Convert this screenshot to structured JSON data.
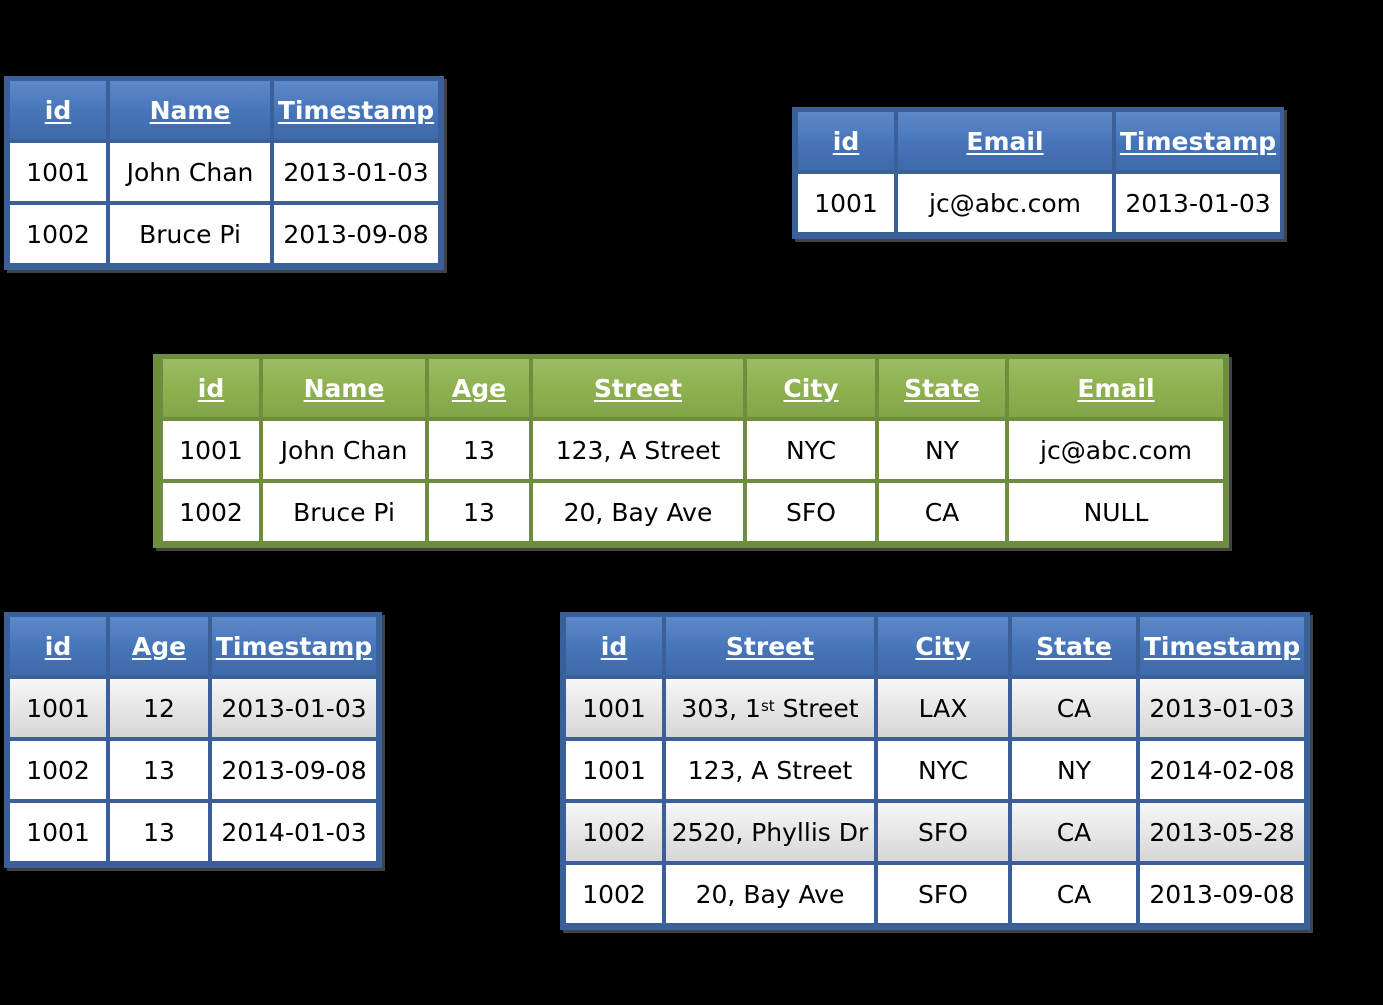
{
  "tables": {
    "person_name": {
      "headers": [
        "id",
        "Name",
        "Timestamp"
      ],
      "rows": [
        [
          "1001",
          "John Chan",
          "2013-01-03"
        ],
        [
          "1002",
          "Bruce Pi",
          "2013-09-08"
        ]
      ]
    },
    "person_email": {
      "headers": [
        "id",
        "Email",
        "Timestamp"
      ],
      "rows": [
        [
          "1001",
          "jc@abc.com",
          "2013-01-03"
        ]
      ]
    },
    "person_current": {
      "headers": [
        "id",
        "Name",
        "Age",
        "Street",
        "City",
        "State",
        "Email"
      ],
      "rows": [
        [
          "1001",
          "John Chan",
          "13",
          "123, A Street",
          "NYC",
          "NY",
          "jc@abc.com"
        ],
        [
          "1002",
          "Bruce Pi",
          "13",
          "20, Bay Ave",
          "SFO",
          "CA",
          "NULL"
        ]
      ]
    },
    "person_age": {
      "headers": [
        "id",
        "Age",
        "Timestamp"
      ],
      "rows": [
        [
          "1001",
          "12",
          "2013-01-03"
        ],
        [
          "1002",
          "13",
          "2013-09-08"
        ],
        [
          "1001",
          "13",
          "2014-01-03"
        ]
      ]
    },
    "person_address": {
      "headers": [
        "id",
        "Street",
        "City",
        "State",
        "Timestamp"
      ],
      "rows": [
        [
          "1001",
          "303, 1",
          "LAX",
          "CA",
          "2013-01-03"
        ],
        [
          "1001",
          "123, A Street",
          "NYC",
          "NY",
          "2014-02-08"
        ],
        [
          "1002",
          "2520, Phyllis Dr",
          "SFO",
          "CA",
          "2013-05-28"
        ],
        [
          "1002",
          "20, Bay Ave",
          "SFO",
          "CA",
          "2013-09-08"
        ]
      ],
      "row0_street_sup": "st",
      "row0_street_tail": " Street"
    }
  },
  "colors": {
    "header_blue": "#4f81bd",
    "header_green": "#9bbb59",
    "background": "#000000"
  }
}
